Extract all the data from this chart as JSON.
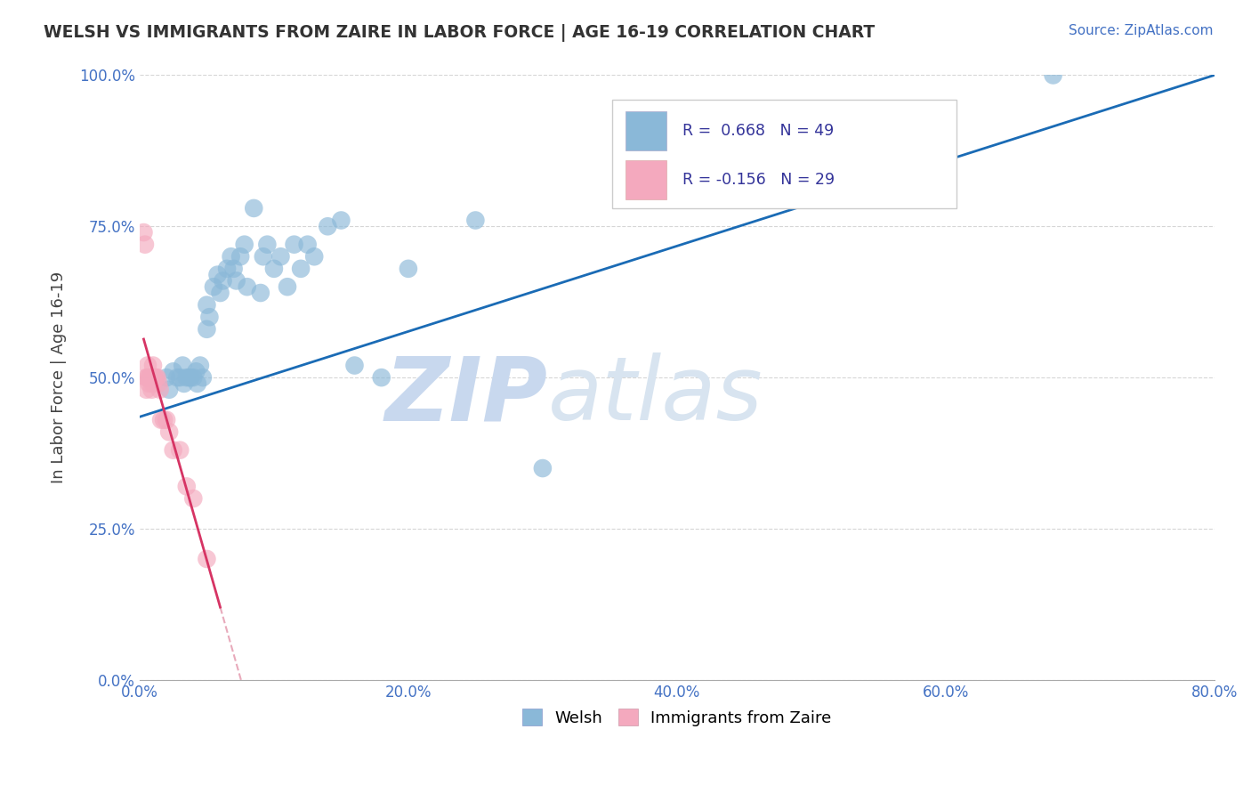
{
  "title": "WELSH VS IMMIGRANTS FROM ZAIRE IN LABOR FORCE | AGE 16-19 CORRELATION CHART",
  "source_text": "Source: ZipAtlas.com",
  "ylabel": "In Labor Force | Age 16-19",
  "xlim": [
    0.0,
    0.8
  ],
  "ylim": [
    0.0,
    1.0
  ],
  "xtick_labels": [
    "0.0%",
    "",
    "20.0%",
    "",
    "40.0%",
    "",
    "60.0%",
    "",
    "80.0%"
  ],
  "xtick_values": [
    0.0,
    0.1,
    0.2,
    0.3,
    0.4,
    0.5,
    0.6,
    0.7,
    0.8
  ],
  "ytick_labels": [
    "0.0%",
    "25.0%",
    "50.0%",
    "75.0%",
    "100.0%"
  ],
  "ytick_values": [
    0.0,
    0.25,
    0.5,
    0.75,
    1.0
  ],
  "welsh_color": "#8ab8d8",
  "zaire_color": "#f4a9be",
  "trend_welsh_color": "#1a6bb5",
  "trend_zaire_color": "#d63464",
  "trend_zaire_dashed_color": "#e8aabb",
  "R_welsh": 0.668,
  "N_welsh": 49,
  "R_zaire": -0.156,
  "N_zaire": 29,
  "watermark_zip": "ZIP",
  "watermark_atlas": "atlas",
  "watermark_color": "#c8d8ee",
  "legend_welsh": "Welsh",
  "legend_zaire": "Immigrants from Zaire",
  "welsh_x": [
    0.02,
    0.022,
    0.025,
    0.028,
    0.03,
    0.032,
    0.033,
    0.035,
    0.037,
    0.038,
    0.04,
    0.042,
    0.043,
    0.045,
    0.047,
    0.05,
    0.05,
    0.052,
    0.055,
    0.058,
    0.06,
    0.062,
    0.065,
    0.068,
    0.07,
    0.072,
    0.075,
    0.078,
    0.08,
    0.085,
    0.09,
    0.092,
    0.095,
    0.1,
    0.105,
    0.11,
    0.115,
    0.12,
    0.125,
    0.13,
    0.14,
    0.15,
    0.16,
    0.18,
    0.2,
    0.25,
    0.3,
    0.55,
    0.68
  ],
  "welsh_y": [
    0.5,
    0.48,
    0.51,
    0.5,
    0.5,
    0.52,
    0.49,
    0.5,
    0.5,
    0.5,
    0.5,
    0.51,
    0.49,
    0.52,
    0.5,
    0.62,
    0.58,
    0.6,
    0.65,
    0.67,
    0.64,
    0.66,
    0.68,
    0.7,
    0.68,
    0.66,
    0.7,
    0.72,
    0.65,
    0.78,
    0.64,
    0.7,
    0.72,
    0.68,
    0.7,
    0.65,
    0.72,
    0.68,
    0.72,
    0.7,
    0.75,
    0.76,
    0.52,
    0.5,
    0.68,
    0.76,
    0.35,
    0.88,
    1.0
  ],
  "zaire_x": [
    0.003,
    0.004,
    0.005,
    0.005,
    0.006,
    0.006,
    0.007,
    0.007,
    0.008,
    0.008,
    0.009,
    0.009,
    0.01,
    0.01,
    0.01,
    0.011,
    0.012,
    0.013,
    0.014,
    0.015,
    0.016,
    0.018,
    0.02,
    0.022,
    0.025,
    0.03,
    0.035,
    0.04,
    0.05
  ],
  "zaire_y": [
    0.74,
    0.72,
    0.5,
    0.48,
    0.5,
    0.52,
    0.5,
    0.49,
    0.5,
    0.5,
    0.5,
    0.48,
    0.5,
    0.52,
    0.49,
    0.5,
    0.5,
    0.5,
    0.49,
    0.48,
    0.43,
    0.43,
    0.43,
    0.41,
    0.38,
    0.38,
    0.32,
    0.3,
    0.2
  ],
  "trend_welsh_x0": 0.0,
  "trend_welsh_y0": 0.435,
  "trend_welsh_x1": 0.8,
  "trend_welsh_y1": 1.0,
  "trend_zaire_solid_x0": 0.003,
  "trend_zaire_solid_x1": 0.06,
  "trend_zaire_dashed_x1": 0.8,
  "background_color": "#ffffff"
}
